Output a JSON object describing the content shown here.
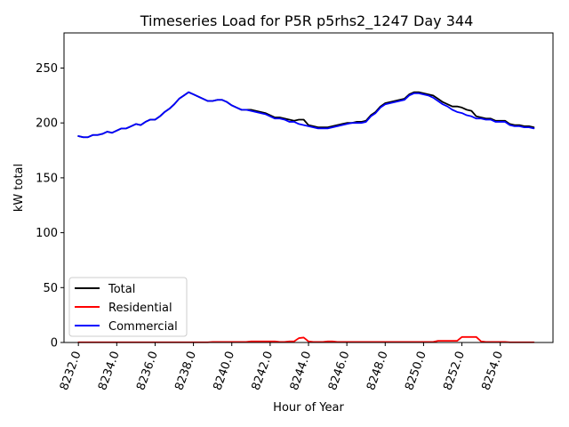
{
  "chart_data": {
    "type": "line",
    "title": "Timeseries Load for P5R p5rhs2_1247  Day 344",
    "xlabel": "Hour of Year",
    "ylabel": "kW total",
    "xlim": [
      8231.25,
      8256.75
    ],
    "ylim": [
      0,
      282
    ],
    "xticks": [
      8232,
      8234,
      8236,
      8238,
      8240,
      8242,
      8244,
      8246,
      8248,
      8250,
      8252,
      8254
    ],
    "xtick_labels": [
      "8232.0",
      "8234.0",
      "8236.0",
      "8238.0",
      "8240.0",
      "8242.0",
      "8244.0",
      "8246.0",
      "8248.0",
      "8250.0",
      "8252.0",
      "8254.0"
    ],
    "yticks": [
      0,
      50,
      100,
      150,
      200,
      250
    ],
    "ytick_labels": [
      "0",
      "50",
      "100",
      "150",
      "200",
      "250"
    ],
    "grid": false,
    "legend_position": "lower-left",
    "x": [
      8232.0,
      8232.25,
      8232.5,
      8232.75,
      8233.0,
      8233.25,
      8233.5,
      8233.75,
      8234.0,
      8234.25,
      8234.5,
      8234.75,
      8235.0,
      8235.25,
      8235.5,
      8235.75,
      8236.0,
      8236.25,
      8236.5,
      8236.75,
      8237.0,
      8237.25,
      8237.5,
      8237.75,
      8238.0,
      8238.25,
      8238.5,
      8238.75,
      8239.0,
      8239.25,
      8239.5,
      8239.75,
      8240.0,
      8240.25,
      8240.5,
      8240.75,
      8241.0,
      8241.25,
      8241.5,
      8241.75,
      8242.0,
      8242.25,
      8242.5,
      8242.75,
      8243.0,
      8243.25,
      8243.5,
      8243.75,
      8244.0,
      8244.25,
      8244.5,
      8244.75,
      8245.0,
      8245.25,
      8245.5,
      8245.75,
      8246.0,
      8246.25,
      8246.5,
      8246.75,
      8247.0,
      8247.25,
      8247.5,
      8247.75,
      8248.0,
      8248.25,
      8248.5,
      8248.75,
      8249.0,
      8249.25,
      8249.5,
      8249.75,
      8250.0,
      8250.25,
      8250.5,
      8250.75,
      8251.0,
      8251.25,
      8251.5,
      8251.75,
      8252.0,
      8252.25,
      8252.5,
      8252.75,
      8253.0,
      8253.25,
      8253.5,
      8253.75,
      8254.0,
      8254.25,
      8254.5,
      8254.75,
      8255.0,
      8255.25,
      8255.5,
      8255.75
    ],
    "series": [
      {
        "name": "Total",
        "color": "#000000",
        "values": [
          188,
          187,
          187,
          189,
          189,
          190,
          192,
          191,
          193,
          195,
          195,
          197,
          199,
          198,
          201,
          203,
          203,
          206,
          210,
          213,
          217,
          222,
          225,
          228,
          226,
          224,
          222,
          220,
          220,
          221,
          221,
          219,
          216,
          214,
          212,
          212,
          212,
          211,
          210,
          209,
          207,
          205,
          205,
          204,
          203,
          202,
          203,
          203,
          198,
          197,
          196,
          196,
          196,
          197,
          198,
          199,
          200,
          200,
          201,
          201,
          202,
          207,
          210,
          215,
          218,
          219,
          220,
          221,
          222,
          226,
          228,
          228,
          227,
          226,
          225,
          222,
          219,
          217,
          215,
          215,
          214,
          212,
          211,
          206,
          205,
          204,
          204,
          202,
          202,
          202,
          199,
          198,
          198,
          197,
          197,
          196
        ]
      },
      {
        "name": "Residential",
        "color": "#ff0000",
        "values": [
          0.2,
          0.2,
          0.2,
          0.2,
          0.2,
          0.2,
          0.2,
          0.2,
          0.2,
          0.2,
          0.2,
          0.2,
          0.2,
          0.2,
          0.2,
          0.2,
          0.2,
          0.2,
          0.2,
          0.2,
          0.2,
          0.2,
          0.2,
          0.2,
          0.2,
          0.2,
          0.2,
          0.2,
          0.5,
          0.5,
          0.5,
          0.5,
          0.5,
          0.5,
          0.5,
          0.5,
          1.0,
          1.0,
          1.0,
          1.0,
          1.0,
          1.0,
          0.5,
          0.5,
          1.0,
          1.0,
          4.0,
          4.5,
          1.0,
          0.5,
          0.5,
          0.5,
          1.0,
          1.0,
          0.5,
          0.5,
          0.5,
          0.5,
          0.5,
          0.5,
          0.5,
          0.5,
          0.5,
          0.5,
          0.5,
          0.5,
          0.5,
          0.5,
          0.5,
          0.5,
          0.5,
          0.5,
          0.5,
          0.5,
          0.5,
          1.5,
          1.5,
          1.5,
          1.5,
          1.5,
          5.0,
          5.0,
          5.0,
          5.0,
          1.0,
          0.5,
          0.5,
          0.5,
          0.5,
          0.5,
          0.2,
          0.2,
          0.2,
          0.2,
          0.2,
          0.2
        ]
      },
      {
        "name": "Commercial",
        "color": "#0000ff",
        "values": [
          188,
          187,
          187,
          189,
          189,
          190,
          192,
          191,
          193,
          195,
          195,
          197,
          199,
          198,
          201,
          203,
          203,
          206,
          210,
          213,
          217,
          222,
          225,
          228,
          226,
          224,
          222,
          220,
          220,
          221,
          221,
          219,
          216,
          214,
          212,
          212,
          211,
          210,
          209,
          208,
          206,
          204,
          204,
          203,
          201,
          201,
          199,
          198,
          197,
          196,
          195,
          195,
          195,
          196,
          197,
          198,
          199,
          200,
          200,
          200,
          201,
          206,
          209,
          214,
          217,
          218,
          219,
          220,
          221,
          225,
          227,
          227,
          226,
          225,
          223,
          220,
          217,
          215,
          212,
          210,
          209,
          207,
          206,
          204,
          204,
          203,
          203,
          201,
          201,
          201,
          198,
          197,
          197,
          196,
          196,
          195
        ]
      }
    ]
  }
}
